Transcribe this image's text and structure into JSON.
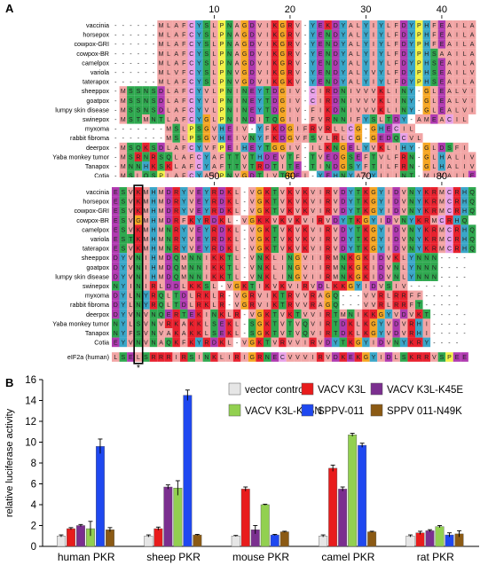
{
  "panel_a": {
    "letter": "A",
    "block1": {
      "ticks": [
        "10",
        "20",
        "30",
        "40"
      ],
      "species": [
        "vaccinia",
        "horsepox",
        "cowpox-GRI",
        "cowpox-BR",
        "camelpox",
        "variola",
        "taterapox",
        "sheeppox",
        "goatpox",
        "lumpy skin disease",
        "swinepox",
        "myxoma",
        "rabbit fibroma",
        "deerpox",
        "Yaba monkey tumor",
        "Tanapox",
        "Cotia"
      ],
      "sequences": [
        "------MLAFCYSLPNAGDVIKGRV-YEKDYALYIYLFDYPHFEAILA",
        "------MLAFCYSLPNAGDVIKGRV-YENDYALYIYLFDYPHFEAILA",
        "------MLAFCYSLPNAGDVIKGRV-YENDYALYIYLFDYPHFEAILA",
        "------MLAFCYSLPNAGDVIKGRV-YENDYALYIYLFDYPHSAAILA",
        "------MLAFCYSLPNAGDVIKGRV-YENDYALYIYLFDYPHSEAILA",
        "------MLVFCYSLPNVGDVIKGRV-YENDYALYVYLFDYPHSEAILV",
        "------MLAFCYSLPNVGDVIKGKV-YENDYALYIYLFDYPHSEAILA",
        "-MSSNSDLAFCYVLPNINEYTDGIV-CIRDNIVVVKLINY-GLEALVI",
        "-MSSNSDLAFCYVLPNINEYTDGIV-CIRDNIVVVKLINY-GLEALVI",
        "-MSSNSDLAFCYVLPNINEYTDGIV-FIKDNIVVVKLINY-GLEALVI",
        "-MSTMNTLAFCYGLPNINDITQGII-FVRNNIFYSLTDY-AMEACIL",
        "-------MSLPSGVHEIV-YFKDGIFRVRLLCG-GHECIL",
        "-------MSLPSGVHEIVNYFKDGVFSVLRLCG-GEDQCVL",
        "-MSQKSDLAFCYVFPEIHEYTGGIV-ILKNGELYVKLIHY-GLDSFI",
        "-MSRNRSQLAFCYAFTTVTHDEVTF-TVEDGSEFTVLFRN-GLHALIV",
        "-MNNHKSKLAFCYAFTTVTRDTITE-TINDGSYFTILFRN-GLHALIV",
        "-MSLQSPLAFCYALPNVGDTIVTGEI-YEHNYALYILINT-MIVAILE"
      ],
      "human_label": "eIF2a (human)",
      "human_seq": "-MPGLSCRFYQHKFPEVEDVVMVNVRSIAEMGAYVSLLEYNNIEGMIL"
    },
    "block2": {
      "ticks": [
        "50",
        "60",
        "70",
        "80"
      ],
      "species": [
        "vaccinia",
        "horsepox",
        "cowpox-GRI",
        "cowpox-BR",
        "camelpox",
        "variola",
        "taterapox",
        "sheeppox",
        "goatpox",
        "lumpy skin disease",
        "swinepox",
        "myxoma",
        "rabbit fibroma",
        "deerpox",
        "Yaba monkey tumor",
        "Tanapox",
        "Cotia"
      ],
      "sequences": [
        "ESVKMHMDRYVEYRDKL-VGKTVKVKVIRVDYTKGYIDVNYKRMCRHQ",
        "ESVKMHMDRYVEYRDKL-VGKTVKVKVIRVDYTKGYIDVNYKRMCRHQ",
        "ESVKMHMDRYVEYRDKL-VGKTVKVKVIRVDYTKGYIDVNYKRMCRHQ",
        "ESVGMHMDRFKYRDKL-VGKKVKVKVIRVDYTKGYIDVNYKRMCRHQ",
        "ESVKMHMNRYVEYRDKL-VGKTVKVKVIRVDYTKGYIDVNYKRMCRHQ",
        "ESTKMHMNRYVEYRDKL-VGKTVKVKVIRVDYTKGYIDVNYKRMCRHQ",
        "ESVKMHMNRYVEYRDKL-VGKTVKVKVIRVDYTKGYIDVNYKRMCRHQ",
        "DYVNIHMDQMNNIKKTL-VNKLINGVIIRMNKGKIDVKLYNNN----",
        "DYVNIHMDQMNNIKKTL-VNKLINGVIIRMNKGKIDVNLYNNN----",
        "DYVNIHMDQMNNIKKTL-VNKLINGVIIRMNKGKIDVNLYNNN----",
        "NYINIRLDDLKKSL-VGKTIKVKVIRVDLKKGYIDVSIV-------",
        "DYLNYRQLTDLRKLR-VGRVIKTRVVRAGQ---VVRLRRFF-----",
        "DYLNYRQLTDLRKLR-VGRVIKTRVVRAGQ---VVRLRRFT-----",
        "DYVNVNQERTEKINKLR-VGKTVKTVVIRTMNIKKGYVDVKT-----",
        "NYLSVNVRKAKKLSEKL-SGKTVTVQVIRTDKLKGYVDVRHI-----",
        "NYFSVNVAKAKKLSEKL-SGKTVTVQVIRTDKLKGYVDVRHI-----",
        "EYVNVNAQKFKYRDKL-VGKTVRVVIRVDYTKGYIDVNYKRY----"
      ],
      "human_label": "eIF2a (human)",
      "human_seq": "LSELSRRRIRSINKLIRIGRNECVVVIRVDKEKGYIDLSKRRVSPEE",
      "star": "*"
    }
  },
  "panel_b": {
    "letter": "B",
    "chart_data": {
      "type": "bar",
      "ylabel": "relative luciferase activity",
      "xlabel": "",
      "ylim": [
        0,
        16
      ],
      "yticks": [
        "0",
        "2",
        "4",
        "6",
        "8",
        "10",
        "12",
        "14",
        "16"
      ],
      "categories": [
        "human PKR",
        "sheep PKR",
        "mouse PKR",
        "camel PKR",
        "rat PKR"
      ],
      "legend_position": "top-right",
      "series": [
        {
          "name": "vector control",
          "color": "#e6e6e6",
          "values": [
            1.0,
            1.0,
            1.0,
            1.0,
            1.0
          ],
          "errors": [
            0.1,
            0.1,
            0.05,
            0.1,
            0.1
          ]
        },
        {
          "name": "VACV K3L",
          "color": "#e81c1c",
          "values": [
            1.7,
            1.7,
            5.5,
            7.5,
            1.3
          ],
          "errors": [
            0.1,
            0.15,
            0.2,
            0.3,
            0.15
          ]
        },
        {
          "name": "VACV K3L-K45E",
          "color": "#7b2f8f",
          "values": [
            2.0,
            5.7,
            1.6,
            5.5,
            1.5
          ],
          "errors": [
            0.1,
            0.2,
            0.4,
            0.2,
            0.1
          ]
        },
        {
          "name": "VACV K3L-K45N",
          "color": "#92d050",
          "values": [
            1.7,
            5.6,
            4.0,
            10.7,
            1.9
          ],
          "errors": [
            0.7,
            0.7,
            0.05,
            0.15,
            0.1
          ]
        },
        {
          "name": "SPPV-011",
          "color": "#1f48f0",
          "values": [
            9.6,
            14.5,
            1.1,
            9.7,
            1.1
          ],
          "errors": [
            0.7,
            0.5,
            0.05,
            0.2,
            0.2
          ]
        },
        {
          "name": "SPPV 011-N49K",
          "color": "#8b5a14",
          "values": [
            1.6,
            1.1,
            1.4,
            1.4,
            1.2
          ],
          "errors": [
            0.2,
            0.05,
            0.05,
            0.05,
            0.3
          ]
        }
      ]
    }
  }
}
